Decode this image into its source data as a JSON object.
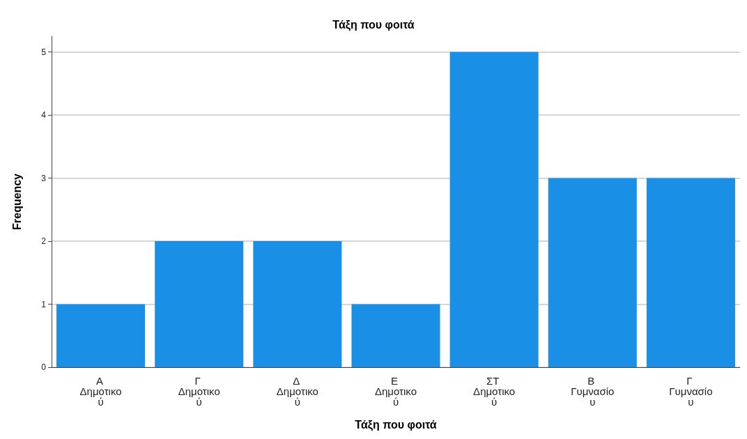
{
  "chart_data": {
    "type": "bar",
    "title": "Τάξη που φοιτά",
    "xlabel": "Τάξη που φοιτά",
    "ylabel": "Frequency",
    "categories": [
      "Α Δημοτικού",
      "Γ Δημοτικού",
      "Δ Δημοτικού",
      "Ε Δημοτικού",
      "ΣΤ Δημοτικού",
      "Β Γυμνασίου",
      "Γ Γυμνασίου"
    ],
    "values": [
      1,
      2,
      2,
      1,
      5,
      3,
      3
    ],
    "color": "#1990e6",
    "ylim": [
      0,
      5.25
    ],
    "yticks": [
      0,
      1,
      2,
      3,
      4,
      5
    ],
    "grid": "y"
  }
}
